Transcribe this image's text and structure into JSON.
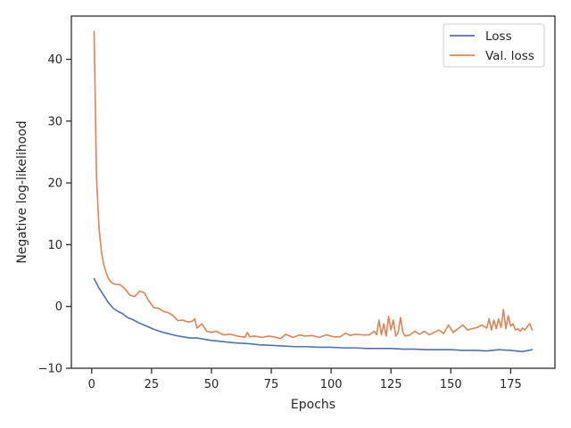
{
  "chart_data": {
    "type": "line",
    "title": "",
    "xlabel": "Epochs",
    "ylabel": "Negative log-likelihood",
    "xlim": [
      -8.5,
      193.5
    ],
    "ylim": [
      -10,
      47
    ],
    "xticks": [
      0,
      25,
      50,
      75,
      100,
      125,
      150,
      175
    ],
    "yticks": [
      -10,
      0,
      10,
      20,
      30,
      40
    ],
    "xtick_labels": [
      "0",
      "25",
      "50",
      "75",
      "100",
      "125",
      "150",
      "175"
    ],
    "ytick_labels": [
      "−10",
      "0",
      "10",
      "20",
      "30",
      "40"
    ],
    "grid": false,
    "legend_position": "top-right",
    "series": [
      {
        "name": "Loss",
        "color": "#4c72b0",
        "x": [
          1,
          3,
          5,
          7,
          9,
          11,
          13,
          15,
          17,
          20,
          23,
          26,
          29,
          32,
          35,
          38,
          41,
          44,
          47,
          50,
          55,
          60,
          65,
          70,
          75,
          80,
          85,
          90,
          95,
          100,
          105,
          110,
          115,
          120,
          125,
          130,
          135,
          140,
          145,
          150,
          155,
          160,
          165,
          170,
          175,
          180,
          184
        ],
        "values": [
          4.5,
          3.0,
          1.8,
          0.6,
          -0.3,
          -0.8,
          -1.2,
          -1.8,
          -2.1,
          -2.7,
          -3.2,
          -3.7,
          -4.1,
          -4.4,
          -4.7,
          -4.9,
          -5.1,
          -5.1,
          -5.3,
          -5.5,
          -5.7,
          -5.9,
          -6.0,
          -6.2,
          -6.3,
          -6.4,
          -6.5,
          -6.5,
          -6.6,
          -6.6,
          -6.7,
          -6.7,
          -6.8,
          -6.8,
          -6.8,
          -6.9,
          -6.9,
          -7.0,
          -7.0,
          -7.0,
          -7.1,
          -7.1,
          -7.2,
          -7.0,
          -7.1,
          -7.3,
          -7.0
        ]
      },
      {
        "name": "Val. loss",
        "color": "#dd8452",
        "x": [
          1,
          2,
          3,
          4,
          5,
          6,
          7,
          8,
          9,
          10,
          12,
          14,
          16,
          18,
          20,
          22,
          24,
          26,
          28,
          30,
          32,
          34,
          36,
          38,
          40,
          42,
          43,
          44,
          46,
          48,
          50,
          52,
          55,
          58,
          61,
          64,
          65,
          66,
          68,
          71,
          74,
          77,
          79,
          81,
          84,
          87,
          89,
          92,
          95,
          98,
          101,
          104,
          106,
          108,
          110,
          113,
          116,
          118,
          119,
          120,
          121,
          122,
          123,
          124,
          125,
          126,
          127,
          128,
          129,
          130,
          131,
          133,
          135,
          137,
          139,
          141,
          143,
          145,
          147,
          149,
          151,
          153,
          155,
          157,
          159,
          161,
          163,
          165,
          166,
          167,
          168,
          169,
          170,
          171,
          172,
          173,
          174,
          175,
          176,
          177,
          178,
          179,
          180,
          181,
          182,
          183,
          184
        ],
        "values": [
          44.5,
          21.0,
          13.0,
          9.0,
          6.8,
          5.5,
          4.5,
          4.0,
          3.7,
          3.6,
          3.5,
          2.8,
          1.8,
          1.6,
          2.5,
          2.2,
          0.8,
          -0.2,
          -0.3,
          -0.8,
          -1.0,
          -1.5,
          -2.3,
          -2.2,
          -2.5,
          -2.4,
          -2.0,
          -3.5,
          -2.8,
          -4.0,
          -4.2,
          -4.0,
          -4.6,
          -4.5,
          -4.8,
          -5.0,
          -4.2,
          -4.9,
          -4.8,
          -5.0,
          -4.8,
          -5.0,
          -5.2,
          -4.5,
          -5.0,
          -4.6,
          -4.8,
          -4.7,
          -5.0,
          -4.6,
          -4.9,
          -4.9,
          -4.3,
          -4.7,
          -4.5,
          -4.6,
          -4.6,
          -4.0,
          -4.6,
          -2.2,
          -4.6,
          -2.8,
          -4.8,
          -1.6,
          -3.8,
          -2.2,
          -4.8,
          -4.2,
          -1.8,
          -4.2,
          -4.8,
          -4.6,
          -4.0,
          -4.5,
          -4.0,
          -4.6,
          -4.2,
          -3.8,
          -4.4,
          -3.0,
          -4.2,
          -3.6,
          -3.0,
          -3.8,
          -3.6,
          -3.4,
          -3.0,
          -3.5,
          -2.0,
          -3.8,
          -2.2,
          -3.6,
          -2.0,
          -3.4,
          -0.5,
          -3.6,
          -1.5,
          -3.2,
          -2.8,
          -3.8,
          -3.6,
          -4.0,
          -3.5,
          -3.8,
          -3.2,
          -2.8,
          -3.8
        ]
      }
    ]
  }
}
